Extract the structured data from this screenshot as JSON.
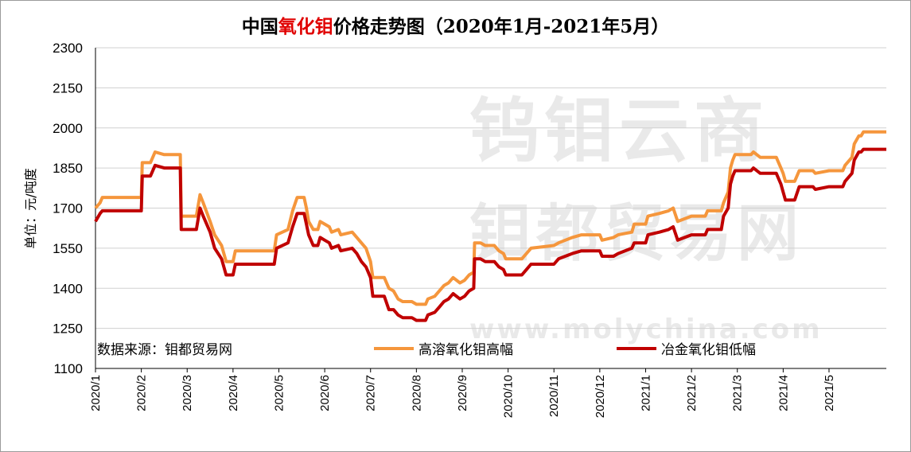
{
  "title": {
    "prefix": "中国",
    "highlight": "氧化钼",
    "suffix": "价格走势图（2020年1月-2021年5月）"
  },
  "colors": {
    "series_high": "#f5963c",
    "series_low": "#c00000",
    "title_highlight": "#e00000",
    "grid": "#d0d0d0"
  },
  "watermark": {
    "line1": "钨钼云商",
    "line2": "钼都贸易网",
    "url": "www.molychina.com"
  },
  "chart_data": {
    "type": "line",
    "title": "中国氧化钼价格走势图（2020年1月-2021年5月）",
    "ylabel": "单位：元/吨度",
    "xlabel": "",
    "ylim": [
      1100,
      2300
    ],
    "yticks": [
      "1100",
      "1250",
      "1400",
      "1550",
      "1700",
      "1850",
      "2000",
      "2150",
      "2300"
    ],
    "categories": [
      "2020/1",
      "2020/2",
      "2020/3",
      "2020/4",
      "2020/5",
      "2020/6",
      "2020/7",
      "2020/8",
      "2020/9",
      "2020/10",
      "2020/11",
      "2020/12",
      "2021/1",
      "2021/2",
      "2021/3",
      "2021/4",
      "2021/5"
    ],
    "grid": "horizontal",
    "legend_position": "bottom",
    "source_text": "数据来源：钼都贸易网",
    "series": [
      {
        "name": "高溶氧化钼高幅",
        "color": "#f5963c",
        "points": [
          [
            0,
            1700
          ],
          [
            0.1,
            1720
          ],
          [
            0.15,
            1740
          ],
          [
            0.5,
            1740
          ],
          [
            1,
            1740
          ],
          [
            1.02,
            1870
          ],
          [
            1.2,
            1870
          ],
          [
            1.3,
            1910
          ],
          [
            1.5,
            1900
          ],
          [
            1.85,
            1900
          ],
          [
            1.87,
            1670
          ],
          [
            2.2,
            1670
          ],
          [
            2.28,
            1750
          ],
          [
            2.35,
            1720
          ],
          [
            2.5,
            1650
          ],
          [
            2.6,
            1600
          ],
          [
            2.75,
            1560
          ],
          [
            2.85,
            1500
          ],
          [
            3.0,
            1500
          ],
          [
            3.05,
            1540
          ],
          [
            3.9,
            1540
          ],
          [
            3.95,
            1600
          ],
          [
            4.2,
            1620
          ],
          [
            4.3,
            1690
          ],
          [
            4.4,
            1740
          ],
          [
            4.55,
            1740
          ],
          [
            4.6,
            1700
          ],
          [
            4.65,
            1650
          ],
          [
            4.75,
            1620
          ],
          [
            4.85,
            1620
          ],
          [
            4.9,
            1650
          ],
          [
            5.0,
            1640
          ],
          [
            5.1,
            1630
          ],
          [
            5.15,
            1610
          ],
          [
            5.3,
            1620
          ],
          [
            5.35,
            1600
          ],
          [
            5.6,
            1610
          ],
          [
            5.7,
            1590
          ],
          [
            5.8,
            1570
          ],
          [
            5.9,
            1550
          ],
          [
            6.0,
            1500
          ],
          [
            6.05,
            1440
          ],
          [
            6.3,
            1440
          ],
          [
            6.4,
            1400
          ],
          [
            6.5,
            1390
          ],
          [
            6.6,
            1360
          ],
          [
            6.7,
            1350
          ],
          [
            6.9,
            1350
          ],
          [
            7.0,
            1340
          ],
          [
            7.2,
            1340
          ],
          [
            7.25,
            1360
          ],
          [
            7.4,
            1370
          ],
          [
            7.5,
            1390
          ],
          [
            7.6,
            1410
          ],
          [
            7.7,
            1420
          ],
          [
            7.8,
            1440
          ],
          [
            7.95,
            1420
          ],
          [
            8.05,
            1430
          ],
          [
            8.15,
            1450
          ],
          [
            8.25,
            1460
          ],
          [
            8.27,
            1570
          ],
          [
            8.4,
            1570
          ],
          [
            8.5,
            1560
          ],
          [
            8.7,
            1560
          ],
          [
            8.8,
            1540
          ],
          [
            8.9,
            1530
          ],
          [
            8.95,
            1510
          ],
          [
            9.3,
            1510
          ],
          [
            9.4,
            1530
          ],
          [
            9.5,
            1550
          ],
          [
            10.0,
            1560
          ],
          [
            10.1,
            1570
          ],
          [
            10.4,
            1590
          ],
          [
            10.6,
            1600
          ],
          [
            11.0,
            1600
          ],
          [
            11.05,
            1580
          ],
          [
            11.3,
            1590
          ],
          [
            11.4,
            1600
          ],
          [
            11.7,
            1610
          ],
          [
            11.75,
            1640
          ],
          [
            12.0,
            1640
          ],
          [
            12.05,
            1670
          ],
          [
            12.3,
            1680
          ],
          [
            12.5,
            1690
          ],
          [
            12.6,
            1700
          ],
          [
            12.7,
            1650
          ],
          [
            12.85,
            1660
          ],
          [
            13.0,
            1670
          ],
          [
            13.3,
            1670
          ],
          [
            13.35,
            1690
          ],
          [
            13.65,
            1690
          ],
          [
            13.7,
            1720
          ],
          [
            13.8,
            1760
          ],
          [
            13.85,
            1850
          ],
          [
            13.9,
            1880
          ],
          [
            13.95,
            1900
          ],
          [
            14.3,
            1900
          ],
          [
            14.35,
            1910
          ],
          [
            14.5,
            1890
          ],
          [
            14.85,
            1890
          ],
          [
            14.9,
            1870
          ],
          [
            14.95,
            1850
          ],
          [
            15.0,
            1830
          ],
          [
            15.05,
            1800
          ],
          [
            15.25,
            1800
          ],
          [
            15.35,
            1840
          ],
          [
            15.65,
            1840
          ],
          [
            15.7,
            1830
          ],
          [
            16.0,
            1840
          ],
          [
            16.3,
            1840
          ],
          [
            16.35,
            1860
          ],
          [
            16.5,
            1890
          ],
          [
            16.55,
            1940
          ],
          [
            16.65,
            1970
          ],
          [
            16.7,
            1970
          ],
          [
            16.75,
            1985
          ],
          [
            17.25,
            1985
          ]
        ]
      },
      {
        "name": "冶金氧化钼低幅",
        "color": "#c00000",
        "points": [
          [
            0,
            1650
          ],
          [
            0.1,
            1680
          ],
          [
            0.15,
            1690
          ],
          [
            0.5,
            1690
          ],
          [
            1,
            1690
          ],
          [
            1.02,
            1820
          ],
          [
            1.2,
            1820
          ],
          [
            1.3,
            1860
          ],
          [
            1.5,
            1850
          ],
          [
            1.85,
            1850
          ],
          [
            1.87,
            1620
          ],
          [
            2.2,
            1620
          ],
          [
            2.28,
            1700
          ],
          [
            2.35,
            1670
          ],
          [
            2.5,
            1610
          ],
          [
            2.6,
            1550
          ],
          [
            2.75,
            1510
          ],
          [
            2.85,
            1450
          ],
          [
            3.0,
            1450
          ],
          [
            3.05,
            1490
          ],
          [
            3.9,
            1490
          ],
          [
            3.95,
            1550
          ],
          [
            4.2,
            1570
          ],
          [
            4.3,
            1630
          ],
          [
            4.4,
            1680
          ],
          [
            4.55,
            1680
          ],
          [
            4.6,
            1640
          ],
          [
            4.65,
            1600
          ],
          [
            4.75,
            1560
          ],
          [
            4.85,
            1560
          ],
          [
            4.9,
            1590
          ],
          [
            5.0,
            1580
          ],
          [
            5.1,
            1570
          ],
          [
            5.15,
            1550
          ],
          [
            5.3,
            1560
          ],
          [
            5.35,
            1540
          ],
          [
            5.6,
            1550
          ],
          [
            5.7,
            1530
          ],
          [
            5.8,
            1500
          ],
          [
            5.9,
            1480
          ],
          [
            6.0,
            1440
          ],
          [
            6.05,
            1370
          ],
          [
            6.3,
            1370
          ],
          [
            6.4,
            1320
          ],
          [
            6.5,
            1320
          ],
          [
            6.6,
            1300
          ],
          [
            6.7,
            1290
          ],
          [
            6.9,
            1290
          ],
          [
            7.0,
            1280
          ],
          [
            7.2,
            1280
          ],
          [
            7.25,
            1300
          ],
          [
            7.4,
            1310
          ],
          [
            7.5,
            1330
          ],
          [
            7.6,
            1350
          ],
          [
            7.7,
            1360
          ],
          [
            7.8,
            1380
          ],
          [
            7.95,
            1360
          ],
          [
            8.05,
            1370
          ],
          [
            8.15,
            1390
          ],
          [
            8.25,
            1400
          ],
          [
            8.27,
            1510
          ],
          [
            8.4,
            1510
          ],
          [
            8.5,
            1500
          ],
          [
            8.7,
            1500
          ],
          [
            8.8,
            1480
          ],
          [
            8.9,
            1470
          ],
          [
            8.95,
            1450
          ],
          [
            9.3,
            1450
          ],
          [
            9.4,
            1470
          ],
          [
            9.5,
            1490
          ],
          [
            10.0,
            1490
          ],
          [
            10.1,
            1510
          ],
          [
            10.4,
            1530
          ],
          [
            10.6,
            1540
          ],
          [
            11.0,
            1540
          ],
          [
            11.05,
            1520
          ],
          [
            11.3,
            1520
          ],
          [
            11.4,
            1530
          ],
          [
            11.7,
            1550
          ],
          [
            11.75,
            1570
          ],
          [
            12.0,
            1570
          ],
          [
            12.05,
            1600
          ],
          [
            12.3,
            1610
          ],
          [
            12.5,
            1620
          ],
          [
            12.6,
            1630
          ],
          [
            12.7,
            1580
          ],
          [
            12.85,
            1590
          ],
          [
            13.0,
            1600
          ],
          [
            13.3,
            1600
          ],
          [
            13.35,
            1620
          ],
          [
            13.65,
            1620
          ],
          [
            13.7,
            1670
          ],
          [
            13.8,
            1700
          ],
          [
            13.85,
            1790
          ],
          [
            13.9,
            1820
          ],
          [
            13.95,
            1840
          ],
          [
            14.3,
            1840
          ],
          [
            14.35,
            1850
          ],
          [
            14.5,
            1830
          ],
          [
            14.85,
            1830
          ],
          [
            14.9,
            1810
          ],
          [
            14.95,
            1790
          ],
          [
            15.0,
            1760
          ],
          [
            15.05,
            1730
          ],
          [
            15.25,
            1730
          ],
          [
            15.35,
            1780
          ],
          [
            15.65,
            1780
          ],
          [
            15.7,
            1770
          ],
          [
            16.0,
            1780
          ],
          [
            16.3,
            1780
          ],
          [
            16.35,
            1800
          ],
          [
            16.5,
            1830
          ],
          [
            16.55,
            1880
          ],
          [
            16.65,
            1910
          ],
          [
            16.7,
            1910
          ],
          [
            16.75,
            1920
          ],
          [
            17.25,
            1920
          ]
        ]
      }
    ]
  }
}
